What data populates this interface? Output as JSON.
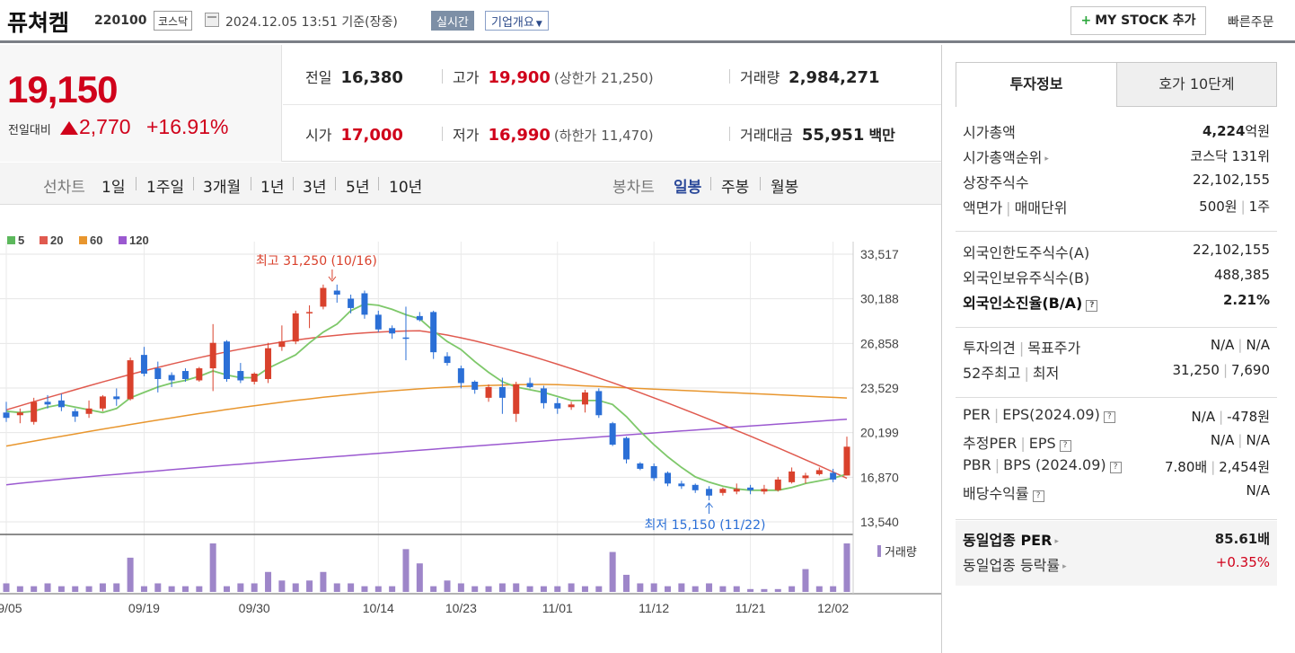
{
  "header": {
    "stock_name": "퓨쳐켐",
    "stock_code": "220100",
    "market": "코스닥",
    "datetime": "2024.12.05 13:51",
    "basis": "기준(장중)",
    "realtime_label": "실시간",
    "overview_label": "기업개요",
    "mystock_label": "MY STOCK 추가",
    "quick_order_label": "빠른주문"
  },
  "price": {
    "current": "19,150",
    "change_label": "전일대비",
    "change": "2,770",
    "change_rate": "+16.91%",
    "prev_close_label": "전일",
    "prev_close": "16,380",
    "high_label": "고가",
    "high": "19,900",
    "upper_limit_label": "(상한가",
    "upper_limit": "21,250",
    "upper_limit_close": ")",
    "volume_label": "거래량",
    "volume": "2,984,271",
    "open_label": "시가",
    "open": "17,000",
    "low_label": "저가",
    "low": "16,990",
    "lower_limit_label": "(하한가",
    "lower_limit": "11,470",
    "lower_limit_close": ")",
    "trade_value_label": "거래대금",
    "trade_value": "55,951",
    "trade_value_unit": "백만"
  },
  "chart_tabs": {
    "line_label": "선차트",
    "line_periods": [
      "1일",
      "1주일",
      "3개월",
      "1년",
      "3년",
      "5년",
      "10년"
    ],
    "candle_label": "봉차트",
    "candle_periods": [
      "일봉",
      "주봉",
      "월봉"
    ],
    "selected_candle": "일봉"
  },
  "chart_data": {
    "type": "candlestick",
    "legend": [
      {
        "name": "5",
        "color": "#5cb85c"
      },
      {
        "name": "20",
        "color": "#e05a4f"
      },
      {
        "name": "60",
        "color": "#e8962e"
      },
      {
        "name": "120",
        "color": "#9b59d0"
      }
    ],
    "y_ticks": [
      "33,517",
      "30,188",
      "26,858",
      "23,529",
      "20,199",
      "16,870",
      "13,540"
    ],
    "ylim": [
      13540,
      33517
    ],
    "x_ticks": [
      "09/05",
      "09/19",
      "09/30",
      "10/14",
      "10/23",
      "11/01",
      "11/12",
      "11/21",
      "12/02"
    ],
    "max_annotation": "최고 31,250 (10/16)",
    "min_annotation": "최저 15,150 (11/22)",
    "volume_label": "거래량",
    "candles": [
      {
        "o": 21700,
        "h": 22500,
        "l": 21000,
        "c": 21300
      },
      {
        "o": 21500,
        "h": 22000,
        "l": 20900,
        "c": 21700
      },
      {
        "o": 21000,
        "h": 22800,
        "l": 20800,
        "c": 22500
      },
      {
        "o": 22500,
        "h": 23000,
        "l": 22000,
        "c": 22300
      },
      {
        "o": 22600,
        "h": 23100,
        "l": 21800,
        "c": 22100
      },
      {
        "o": 21800,
        "h": 22000,
        "l": 21000,
        "c": 21400
      },
      {
        "o": 21600,
        "h": 22600,
        "l": 21300,
        "c": 22000
      },
      {
        "o": 22000,
        "h": 23000,
        "l": 21800,
        "c": 22900
      },
      {
        "o": 22900,
        "h": 23500,
        "l": 22200,
        "c": 22700
      },
      {
        "o": 22700,
        "h": 25800,
        "l": 22600,
        "c": 25600
      },
      {
        "o": 26000,
        "h": 26600,
        "l": 24400,
        "c": 24600
      },
      {
        "o": 25000,
        "h": 25500,
        "l": 23200,
        "c": 24200
      },
      {
        "o": 24500,
        "h": 24700,
        "l": 23600,
        "c": 24100
      },
      {
        "o": 24800,
        "h": 25000,
        "l": 24000,
        "c": 24200
      },
      {
        "o": 24100,
        "h": 25100,
        "l": 24000,
        "c": 25000
      },
      {
        "o": 25000,
        "h": 28300,
        "l": 23300,
        "c": 26900
      },
      {
        "o": 27000,
        "h": 27100,
        "l": 24000,
        "c": 24200
      },
      {
        "o": 24800,
        "h": 25400,
        "l": 23900,
        "c": 24100
      },
      {
        "o": 24000,
        "h": 24700,
        "l": 23800,
        "c": 24600
      },
      {
        "o": 24200,
        "h": 26900,
        "l": 23900,
        "c": 26500
      },
      {
        "o": 26600,
        "h": 28200,
        "l": 26300,
        "c": 27000
      },
      {
        "o": 27000,
        "h": 29300,
        "l": 26800,
        "c": 29100
      },
      {
        "o": 29100,
        "h": 29700,
        "l": 28000,
        "c": 29200
      },
      {
        "o": 29600,
        "h": 31250,
        "l": 29400,
        "c": 31000
      },
      {
        "o": 30800,
        "h": 31250,
        "l": 29900,
        "c": 30500
      },
      {
        "o": 30200,
        "h": 30500,
        "l": 29100,
        "c": 29500
      },
      {
        "o": 30600,
        "h": 30800,
        "l": 28700,
        "c": 29000
      },
      {
        "o": 29000,
        "h": 29300,
        "l": 27700,
        "c": 27900
      },
      {
        "o": 28000,
        "h": 28200,
        "l": 27200,
        "c": 27600
      },
      {
        "o": 27300,
        "h": 29600,
        "l": 25600,
        "c": 27200
      },
      {
        "o": 28900,
        "h": 29200,
        "l": 28500,
        "c": 28600
      },
      {
        "o": 29200,
        "h": 29300,
        "l": 25700,
        "c": 26200
      },
      {
        "o": 25900,
        "h": 26200,
        "l": 25200,
        "c": 25400
      },
      {
        "o": 25000,
        "h": 25200,
        "l": 23500,
        "c": 23900
      },
      {
        "o": 24000,
        "h": 24100,
        "l": 23100,
        "c": 23400
      },
      {
        "o": 22800,
        "h": 23800,
        "l": 22500,
        "c": 23600
      },
      {
        "o": 23600,
        "h": 24300,
        "l": 21600,
        "c": 22800
      },
      {
        "o": 21600,
        "h": 24000,
        "l": 21000,
        "c": 23800
      },
      {
        "o": 23900,
        "h": 24300,
        "l": 23500,
        "c": 23600
      },
      {
        "o": 23500,
        "h": 23700,
        "l": 22000,
        "c": 22400
      },
      {
        "o": 22400,
        "h": 22800,
        "l": 21600,
        "c": 22000
      },
      {
        "o": 22100,
        "h": 22500,
        "l": 21900,
        "c": 22300
      },
      {
        "o": 22300,
        "h": 23400,
        "l": 21700,
        "c": 23200
      },
      {
        "o": 23300,
        "h": 23500,
        "l": 21300,
        "c": 21500
      },
      {
        "o": 20900,
        "h": 21000,
        "l": 19200,
        "c": 19300
      },
      {
        "o": 19800,
        "h": 19900,
        "l": 17900,
        "c": 18200
      },
      {
        "o": 17900,
        "h": 18000,
        "l": 17400,
        "c": 17500
      },
      {
        "o": 17700,
        "h": 17900,
        "l": 16600,
        "c": 16800
      },
      {
        "o": 17200,
        "h": 17300,
        "l": 16200,
        "c": 16400
      },
      {
        "o": 16400,
        "h": 16600,
        "l": 16000,
        "c": 16200
      },
      {
        "o": 16300,
        "h": 16400,
        "l": 15700,
        "c": 15900
      },
      {
        "o": 16000,
        "h": 16200,
        "l": 15150,
        "c": 15500
      },
      {
        "o": 15700,
        "h": 16100,
        "l": 15500,
        "c": 16000
      },
      {
        "o": 15800,
        "h": 16400,
        "l": 15600,
        "c": 16000
      },
      {
        "o": 16100,
        "h": 16300,
        "l": 15600,
        "c": 15900
      },
      {
        "o": 15800,
        "h": 16300,
        "l": 15600,
        "c": 16000
      },
      {
        "o": 15900,
        "h": 16900,
        "l": 15800,
        "c": 16700
      },
      {
        "o": 16500,
        "h": 17600,
        "l": 16400,
        "c": 17300
      },
      {
        "o": 16800,
        "h": 17200,
        "l": 16400,
        "c": 17000
      },
      {
        "o": 17100,
        "h": 17600,
        "l": 17000,
        "c": 17400
      },
      {
        "o": 17200,
        "h": 17500,
        "l": 16500,
        "c": 16700
      },
      {
        "o": 17000,
        "h": 19900,
        "l": 16990,
        "c": 19150
      }
    ],
    "volumes": [
      3,
      2,
      2,
      3,
      2,
      2,
      2,
      3,
      3,
      12,
      2,
      3,
      2,
      2,
      2,
      17,
      2,
      3,
      3,
      7,
      4,
      3,
      4,
      7,
      3,
      3,
      2,
      2,
      2,
      15,
      10,
      2,
      4,
      3,
      2,
      2,
      3,
      3,
      2,
      2,
      2,
      3,
      2,
      2,
      14,
      6,
      3,
      3,
      2,
      3,
      2,
      3,
      2,
      2,
      1,
      1,
      1,
      2,
      8,
      2,
      2,
      17
    ],
    "ma_lines": {
      "ma5": [
        21800,
        21700,
        21800,
        22100,
        22300,
        22100,
        21900,
        21700,
        22000,
        22800,
        23200,
        23600,
        23900,
        24100,
        24400,
        24800,
        24500,
        24300,
        24300,
        25000,
        25500,
        26000,
        26900,
        27700,
        28300,
        29300,
        29800,
        29700,
        29400,
        29000,
        28700,
        27800,
        27000,
        26400,
        25500,
        24700,
        24000,
        23600,
        23400,
        23200,
        22900,
        22600,
        22600,
        22600,
        22300,
        21400,
        20300,
        19300,
        18400,
        17600,
        16900,
        16500,
        16200,
        16000,
        15900,
        15900,
        15900,
        16100,
        16400,
        16600,
        16800,
        17100
      ]
    }
  },
  "side": {
    "tab_invest": "투자정보",
    "tab_orderbook": "호가 10단계",
    "rows1": [
      {
        "k": "시가총액",
        "v": "4,224",
        "u": "억원"
      },
      {
        "k": "시가총액순위",
        "v": "코스닥 131위"
      },
      {
        "k": "상장주식수",
        "v": "22,102,155"
      },
      {
        "k": "액면가",
        "k2": "매매단위",
        "v": "500원",
        "v2": "1주"
      }
    ],
    "rows2": [
      {
        "k": "외국인한도주식수(A)",
        "v": "22,102,155"
      },
      {
        "k": "외국인보유주식수(B)",
        "v": "488,385"
      },
      {
        "k": "외국인소진율(B/A)",
        "v": "2.21%"
      }
    ],
    "rows3": [
      {
        "k": "투자의견",
        "k2": "목표주가",
        "v": "N/A",
        "v2": "N/A"
      },
      {
        "k": "52주최고",
        "k2": "최저",
        "v": "31,250",
        "v2": "7,690"
      }
    ],
    "rows4": [
      {
        "k": "PER",
        "k2": "EPS(2024.09)",
        "v": "N/A",
        "v2": "-478원"
      },
      {
        "k": "추정PER",
        "k2": "EPS",
        "v": "N/A",
        "v2": "N/A"
      },
      {
        "k": "PBR",
        "k2": "BPS (2024.09)",
        "v": "7.80배",
        "v2": "2,454원"
      },
      {
        "k": "배당수익률",
        "v": "N/A"
      }
    ],
    "rows5": [
      {
        "k": "동일업종 PER",
        "v": "85.61배"
      },
      {
        "k": "동일업종 등락률",
        "v": "+0.35%"
      }
    ],
    "hint_char": "?"
  }
}
